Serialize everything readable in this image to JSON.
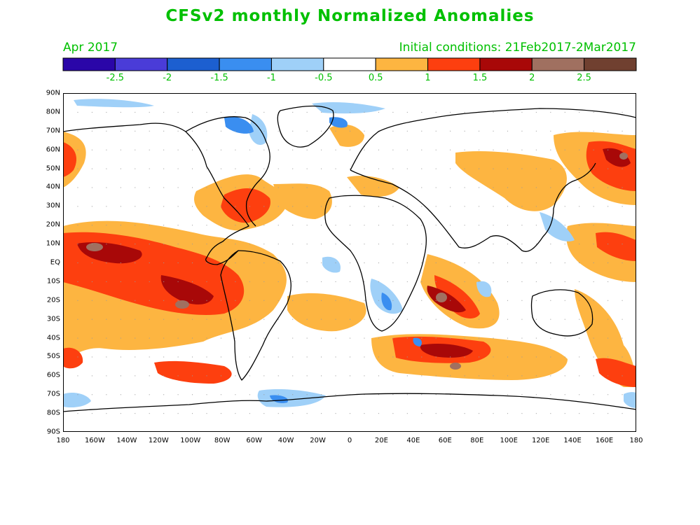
{
  "title": "CFSv2 monthly Normalized Anomalies",
  "forecast_month": "Apr 2017",
  "initial_conditions": "Initial conditions: 21Feb2017-2Mar2017",
  "colorbar": {
    "colors": [
      "#2a06a8",
      "#4a3cd8",
      "#1c5fd0",
      "#3a8ef0",
      "#9fd0f8",
      "#ffffff",
      "#fdb541",
      "#fd3f0f",
      "#a80808",
      "#a07060",
      "#704030"
    ],
    "labels": [
      "-2.5",
      "-2",
      "-1.5",
      "-1",
      "-0.5",
      "0.5",
      "1",
      "1.5",
      "2",
      "2.5"
    ]
  },
  "lat_labels": [
    "90N",
    "80N",
    "70N",
    "60N",
    "50N",
    "40N",
    "30N",
    "20N",
    "10N",
    "EQ",
    "10S",
    "20S",
    "30S",
    "40S",
    "50S",
    "60S",
    "70S",
    "80S",
    "90S"
  ],
  "lon_labels": [
    "180",
    "160W",
    "140W",
    "120W",
    "100W",
    "80W",
    "60W",
    "40W",
    "20W",
    "0",
    "20E",
    "40E",
    "60E",
    "80E",
    "100E",
    "120E",
    "140E",
    "160E",
    "180"
  ]
}
